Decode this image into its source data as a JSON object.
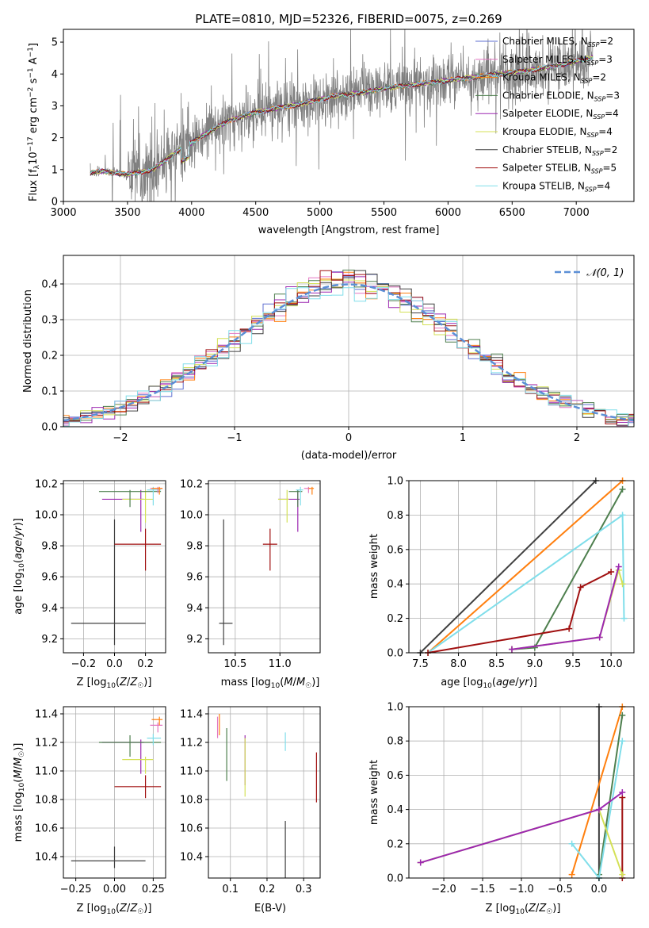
{
  "chart_data": [
    {
      "id": "spectrum",
      "type": "line",
      "title": "PLATE=0810, MJD=52326, FIBERID=0075, z=0.269",
      "xlabel": "wavelength [Angstrom, rest frame]",
      "ylabel": "Flux [f_λ 10^-17 erg cm^-2 s^-1 A^-1]",
      "xlim": [
        3000,
        7450
      ],
      "ylim": [
        0,
        5.4
      ],
      "xticks": [
        3000,
        3500,
        4000,
        4500,
        5000,
        5500,
        6000,
        6500,
        7000
      ],
      "yticks": [
        0,
        1,
        2,
        3,
        4,
        5
      ],
      "data_color": "#808080",
      "legend_placement": "top-right",
      "series": [
        {
          "name": "Chabrier MILES, N_SSP=2",
          "color": "#5f6fd0"
        },
        {
          "name": "Salpeter MILES, N_SSP=3",
          "color": "#e377c2"
        },
        {
          "name": "Kroupa MILES, N_SSP=2",
          "color": "#ff7f0e"
        },
        {
          "name": "Chabrier ELODIE, N_SSP=3",
          "color": "#4e7f4e"
        },
        {
          "name": "Salpeter ELODIE, N_SSP=4",
          "color": "#9c27b0"
        },
        {
          "name": "Kroupa ELODIE, N_SSP=4",
          "color": "#d4e157"
        },
        {
          "name": "Chabrier STELIB, N_SSP=2",
          "color": "#404040"
        },
        {
          "name": "Salpeter STELIB, N_SSP=5",
          "color": "#a01010"
        },
        {
          "name": "Kroupa STELIB, N_SSP=4",
          "color": "#80deea"
        }
      ],
      "model_continuum": {
        "x": [
          3210,
          3300,
          3500,
          3700,
          3900,
          4100,
          4300,
          4500,
          4700,
          4900,
          5100,
          5300,
          5500,
          5700,
          5900,
          6100,
          6300,
          6500,
          6700,
          6900,
          7100
        ],
        "y": [
          0.9,
          0.95,
          0.85,
          1.0,
          1.6,
          2.1,
          2.55,
          2.8,
          2.95,
          3.1,
          3.3,
          3.4,
          3.55,
          3.65,
          3.75,
          3.85,
          3.95,
          4.05,
          4.15,
          4.3,
          4.5
        ]
      }
    },
    {
      "id": "residuals",
      "type": "histogram",
      "xlabel": "(data-model)/error",
      "ylabel": "Normed distribution",
      "xlim": [
        -2.5,
        2.5
      ],
      "ylim": [
        0,
        0.48
      ],
      "xticks": [
        -2,
        -1,
        0,
        1,
        2
      ],
      "yticks": [
        0.0,
        0.1,
        0.2,
        0.3,
        0.4
      ],
      "grid": true,
      "reference_curve": {
        "name": "𝒩(0, 1)",
        "color": "#5b8fd6",
        "style": "dashed"
      },
      "bin_width": 0.1
    },
    {
      "id": "age_vs_Z",
      "type": "scatter",
      "xlabel": "Z [log10(Z/Z☉)]",
      "ylabel": "age [log10(age/yr)]",
      "xlim": [
        -0.33,
        0.33
      ],
      "ylim": [
        9.11,
        10.22
      ],
      "xticks": [
        -0.2,
        0.0,
        0.2
      ],
      "yticks": [
        9.2,
        9.4,
        9.6,
        9.8,
        10.0,
        10.2
      ]
    },
    {
      "id": "age_vs_mass",
      "type": "scatter",
      "xlabel": "mass [log10(M/M☉)]",
      "xlim": [
        10.2,
        11.45
      ],
      "ylim": [
        9.11,
        10.22
      ],
      "xticks": [
        10.5,
        11.0
      ],
      "yticks": [
        9.2,
        9.4,
        9.6,
        9.8,
        10.0,
        10.2
      ]
    },
    {
      "id": "massweight_vs_age",
      "type": "line",
      "xlabel": "age [log10(age/yr)]",
      "ylabel": "mass weight",
      "xlim": [
        7.35,
        10.3
      ],
      "ylim": [
        0,
        1
      ],
      "xticks": [
        7.5,
        8.0,
        8.5,
        9.0,
        9.5,
        10.0
      ],
      "yticks": [
        0.0,
        0.2,
        0.4,
        0.6,
        0.8,
        1.0
      ],
      "grid": true
    },
    {
      "id": "mass_vs_Z",
      "type": "scatter",
      "xlabel": "Z [log10(Z/Z☉)]",
      "ylabel": "mass [log10(M/M☉)]",
      "xlim": [
        -0.33,
        0.33
      ],
      "ylim": [
        10.25,
        11.45
      ],
      "xticks": [
        -0.25,
        0.0,
        0.25
      ],
      "yticks": [
        10.4,
        10.6,
        10.8,
        11.0,
        11.2,
        11.4
      ]
    },
    {
      "id": "mass_vs_ebv",
      "type": "scatter",
      "xlabel": "E(B-V)",
      "xlim": [
        0.04,
        0.345
      ],
      "ylim": [
        10.25,
        11.45
      ],
      "xticks": [
        0.1,
        0.2,
        0.3
      ],
      "yticks": [
        10.4,
        10.6,
        10.8,
        11.0,
        11.2,
        11.4
      ]
    },
    {
      "id": "massweight_vs_Z",
      "type": "line",
      "xlabel": "Z [log10(Z/Z☉)]",
      "ylabel": "mass weight",
      "xlim": [
        -2.45,
        0.45
      ],
      "ylim": [
        0,
        1
      ],
      "xticks": [
        -2.0,
        -1.5,
        -1.0,
        -0.5,
        0.0
      ],
      "yticks": [
        0.0,
        0.2,
        0.4,
        0.6,
        0.8,
        1.0
      ],
      "grid": true
    }
  ]
}
